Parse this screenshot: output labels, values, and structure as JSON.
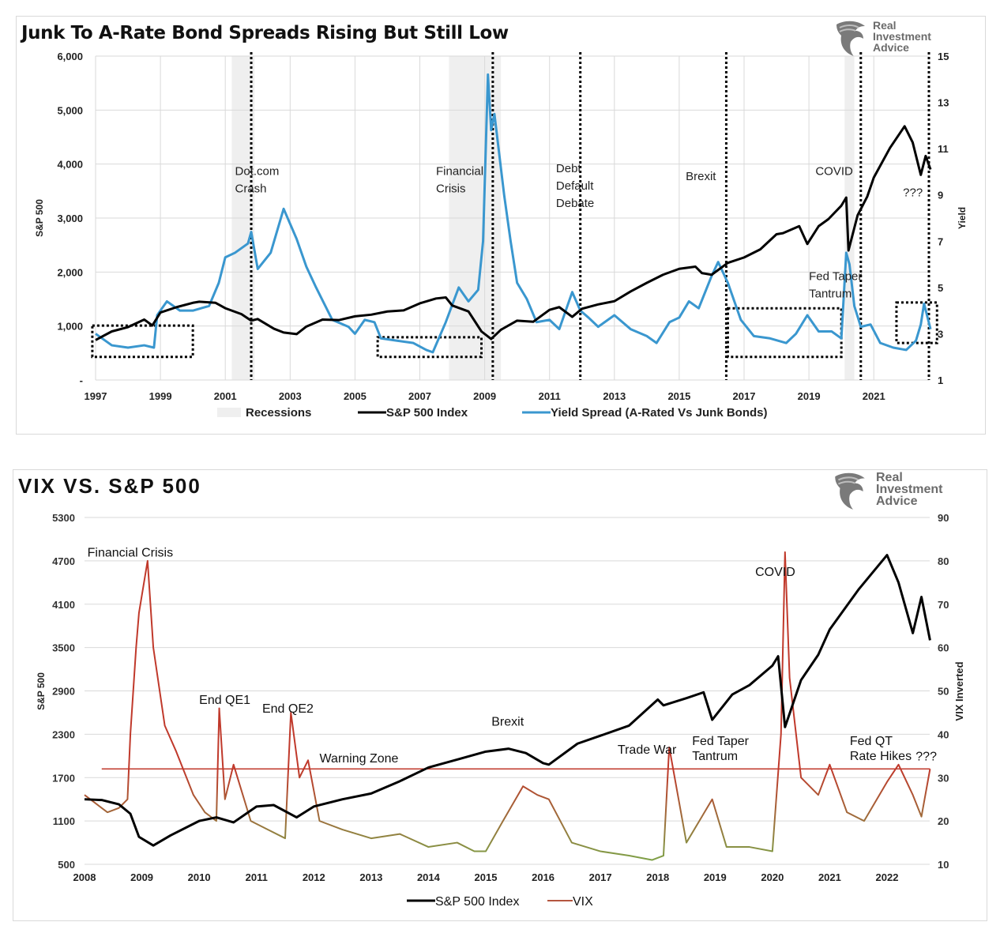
{
  "chart_data": [
    {
      "type": "line",
      "title": "Junk To A-Rate Bond Spreads Rising But Still Low",
      "xlabel": "",
      "ylabel": "S&P 500",
      "y2label": "Yield",
      "xlim": [
        1997,
        2022.75
      ],
      "ylim": [
        0,
        6000
      ],
      "y2lim": [
        1,
        15
      ],
      "x_ticks": [
        "1997",
        "1999",
        "2001",
        "2003",
        "2005",
        "2007",
        "2009",
        "2011",
        "2013",
        "2015",
        "2017",
        "2019",
        "2021"
      ],
      "y_ticks": [
        "-",
        "1,000",
        "2,000",
        "3,000",
        "4,000",
        "5,000",
        "6,000"
      ],
      "y2_ticks": [
        "1",
        "3",
        "5",
        "7",
        "9",
        "11",
        "13",
        "15"
      ],
      "grid": true,
      "legend": {
        "placement": "bottom",
        "entries": [
          "Recessions",
          "S&P 500 Index",
          "Yield Spread (A-Rated Vs Junk Bonds)"
        ]
      },
      "recessions": [
        [
          2001.2,
          2001.9
        ],
        [
          2007.9,
          2009.5
        ],
        [
          2020.1,
          2020.4
        ]
      ],
      "event_lines": [
        2001.8,
        2009.25,
        2011.95,
        2016.45,
        2020.6,
        2022.7
      ],
      "annotations": [
        {
          "text": "Dot.com\nCrash",
          "x": 2001.3,
          "y": 3800
        },
        {
          "text": "Financial\nCrisis",
          "x": 2007.5,
          "y": 3800
        },
        {
          "text": "Debt\nDefault\nDebate",
          "x": 2011.2,
          "y": 3850
        },
        {
          "text": "Brexit",
          "x": 2015.2,
          "y": 3700
        },
        {
          "text": "COVID",
          "x": 2019.2,
          "y": 3800
        },
        {
          "text": "???",
          "x": 2021.9,
          "y": 3400
        },
        {
          "text": "Fed Taper\nTantrum",
          "x": 2019.0,
          "y": 1850
        }
      ],
      "low_spread_boxes": [
        {
          "x": [
            1996.9,
            2000.0
          ],
          "y2": [
            2.0,
            3.35
          ]
        },
        {
          "x": [
            2005.7,
            2008.9
          ],
          "y2": [
            2.0,
            2.85
          ]
        },
        {
          "x": [
            2016.5,
            2020.0
          ],
          "y2": [
            2.0,
            4.1
          ]
        },
        {
          "x": [
            2021.7,
            2022.95
          ],
          "y2": [
            2.6,
            4.35
          ]
        }
      ],
      "series": [
        {
          "name": "S&P 500 Index",
          "axis": "left",
          "color": "#000000",
          "x": [
            1997.0,
            1997.5,
            1998.0,
            1998.5,
            1998.75,
            1999.0,
            1999.5,
            2000.0,
            2000.2,
            2000.7,
            2001.0,
            2001.5,
            2001.8,
            2002.0,
            2002.5,
            2002.8,
            2003.2,
            2003.5,
            2004.0,
            2004.5,
            2005.0,
            2005.5,
            2006.0,
            2006.5,
            2007.0,
            2007.5,
            2007.8,
            2008.0,
            2008.5,
            2008.9,
            2009.2,
            2009.5,
            2010.0,
            2010.5,
            2011.0,
            2011.3,
            2011.7,
            2012.0,
            2012.5,
            2013.0,
            2013.5,
            2014.0,
            2014.5,
            2015.0,
            2015.5,
            2015.7,
            2016.0,
            2016.5,
            2017.0,
            2017.5,
            2018.0,
            2018.2,
            2018.7,
            2018.95,
            2019.3,
            2019.6,
            2020.0,
            2020.15,
            2020.22,
            2020.5,
            2020.8,
            2021.0,
            2021.5,
            2021.95,
            2022.2,
            2022.45,
            2022.6,
            2022.75
          ],
          "values": [
            740,
            900,
            980,
            1120,
            1010,
            1250,
            1350,
            1430,
            1450,
            1430,
            1330,
            1220,
            1100,
            1130,
            950,
            880,
            850,
            990,
            1120,
            1110,
            1180,
            1210,
            1270,
            1290,
            1420,
            1510,
            1530,
            1380,
            1270,
            900,
            760,
            930,
            1100,
            1080,
            1300,
            1350,
            1170,
            1320,
            1400,
            1460,
            1640,
            1800,
            1950,
            2060,
            2100,
            1980,
            1950,
            2170,
            2270,
            2420,
            2700,
            2720,
            2850,
            2520,
            2850,
            2980,
            3230,
            3380,
            2400,
            3050,
            3400,
            3750,
            4300,
            4700,
            4400,
            3800,
            4150,
            3900
          ]
        },
        {
          "name": "Yield Spread (A-Rated Vs Junk Bonds)",
          "axis": "right",
          "color": "#3a97cf",
          "x": [
            1997.0,
            1997.5,
            1998.0,
            1998.5,
            1998.8,
            1998.9,
            1999.2,
            1999.6,
            2000.0,
            2000.5,
            2000.8,
            2001.0,
            2001.3,
            2001.7,
            2001.8,
            2002.0,
            2002.4,
            2002.8,
            2003.2,
            2003.5,
            2003.8,
            2004.3,
            2004.8,
            2005.0,
            2005.3,
            2005.6,
            2005.8,
            2006.3,
            2006.8,
            2007.2,
            2007.4,
            2007.8,
            2008.2,
            2008.5,
            2008.8,
            2008.95,
            2009.1,
            2009.2,
            2009.3,
            2009.6,
            2009.8,
            2010.0,
            2010.3,
            2010.6,
            2011.0,
            2011.3,
            2011.7,
            2011.95,
            2012.2,
            2012.5,
            2013.0,
            2013.5,
            2014.0,
            2014.3,
            2014.7,
            2015.0,
            2015.3,
            2015.6,
            2016.0,
            2016.2,
            2016.5,
            2016.9,
            2017.3,
            2017.8,
            2018.3,
            2018.6,
            2018.95,
            2019.3,
            2019.7,
            2020.0,
            2020.15,
            2020.25,
            2020.4,
            2020.6,
            2020.9,
            2021.2,
            2021.6,
            2022.0,
            2022.3,
            2022.45,
            2022.55,
            2022.75
          ],
          "values": [
            3.0,
            2.5,
            2.4,
            2.5,
            2.4,
            3.8,
            4.4,
            4.0,
            4.0,
            4.2,
            5.2,
            6.3,
            6.5,
            6.9,
            7.4,
            5.8,
            6.5,
            8.4,
            7.1,
            5.9,
            5.0,
            3.6,
            3.3,
            3.0,
            3.6,
            3.5,
            2.8,
            2.7,
            2.6,
            2.3,
            2.2,
            3.5,
            5.0,
            4.4,
            4.9,
            7.0,
            14.2,
            11.8,
            12.5,
            9.0,
            7.0,
            5.2,
            4.5,
            3.5,
            3.6,
            3.2,
            4.8,
            4.0,
            3.7,
            3.3,
            3.8,
            3.2,
            2.9,
            2.6,
            3.5,
            3.7,
            4.4,
            4.1,
            5.5,
            6.1,
            5.2,
            3.6,
            2.9,
            2.8,
            2.6,
            3.0,
            3.8,
            3.1,
            3.1,
            2.8,
            6.5,
            6.0,
            4.2,
            3.3,
            3.4,
            2.6,
            2.4,
            2.3,
            2.7,
            3.4,
            4.3,
            3.2
          ]
        }
      ]
    },
    {
      "type": "line",
      "title": "VIX VS. S&P 500",
      "xlabel": "",
      "ylabel": "S&P 500",
      "y2label": "VIX Inverted",
      "xlim": [
        2008,
        2022.75
      ],
      "ylim": [
        500,
        5300
      ],
      "y2lim": [
        10,
        90
      ],
      "x_ticks": [
        "2008",
        "2009",
        "2010",
        "2011",
        "2012",
        "2013",
        "2014",
        "2015",
        "2016",
        "2017",
        "2018",
        "2019",
        "2020",
        "2021",
        "2022"
      ],
      "y_ticks": [
        "500",
        "1100",
        "1700",
        "2300",
        "2900",
        "3500",
        "4100",
        "4700",
        "5300"
      ],
      "y2_ticks": [
        "10",
        "20",
        "30",
        "40",
        "50",
        "60",
        "70",
        "80",
        "90"
      ],
      "grid": true,
      "legend": {
        "placement": "bottom",
        "entries": [
          "S&P 500 Index",
          "VIX"
        ]
      },
      "warning_zone_level": 32,
      "annotations": [
        {
          "text": "Financial Crisis",
          "x": 2008.05,
          "y2": 81
        },
        {
          "text": "End QE1",
          "x": 2010.0,
          "y2": 47
        },
        {
          "text": "End QE2",
          "x": 2011.1,
          "y2": 45
        },
        {
          "text": "Warning Zone",
          "x": 2012.1,
          "y2": 33.5
        },
        {
          "text": "Brexit",
          "x": 2015.1,
          "y2": 42
        },
        {
          "text": "Trade War",
          "x": 2017.3,
          "y2": 35.5
        },
        {
          "text": "Fed Taper\nTantrum",
          "x": 2018.6,
          "y2": 37.5
        },
        {
          "text": "COVID",
          "x": 2019.7,
          "y2": 76.5
        },
        {
          "text": "Fed QT\nRate Hikes",
          "x": 2021.35,
          "y2": 37.5
        },
        {
          "text": "???",
          "x": 2022.5,
          "y2": 34
        }
      ],
      "series": [
        {
          "name": "S&P 500 Index",
          "axis": "left",
          "color": "#000000",
          "x": [
            2008.0,
            2008.3,
            2008.6,
            2008.8,
            2008.95,
            2009.2,
            2009.5,
            2010.0,
            2010.3,
            2010.6,
            2011.0,
            2011.3,
            2011.7,
            2012.0,
            2012.5,
            2013.0,
            2013.5,
            2014.0,
            2014.5,
            2015.0,
            2015.4,
            2015.7,
            2016.0,
            2016.1,
            2016.6,
            2017.0,
            2017.5,
            2018.0,
            2018.1,
            2018.5,
            2018.8,
            2018.95,
            2019.3,
            2019.6,
            2020.0,
            2020.1,
            2020.22,
            2020.5,
            2020.8,
            2021.0,
            2021.5,
            2022.0,
            2022.2,
            2022.45,
            2022.6,
            2022.75
          ],
          "values": [
            1400,
            1390,
            1330,
            1200,
            880,
            760,
            900,
            1100,
            1150,
            1080,
            1300,
            1320,
            1150,
            1300,
            1400,
            1480,
            1650,
            1840,
            1950,
            2060,
            2100,
            2040,
            1900,
            1880,
            2170,
            2280,
            2420,
            2780,
            2700,
            2800,
            2880,
            2500,
            2850,
            2980,
            3250,
            3380,
            2400,
            3050,
            3400,
            3750,
            4300,
            4780,
            4400,
            3700,
            4200,
            3600
          ]
        },
        {
          "name": "VIX",
          "axis": "right",
          "color": "#c0392b",
          "color_low": "#7ca649",
          "x": [
            2008.0,
            2008.2,
            2008.4,
            2008.6,
            2008.75,
            2008.8,
            2008.9,
            2008.95,
            2009.1,
            2009.2,
            2009.4,
            2009.6,
            2009.9,
            2010.1,
            2010.3,
            2010.35,
            2010.45,
            2010.6,
            2010.9,
            2011.2,
            2011.5,
            2011.6,
            2011.75,
            2011.9,
            2012.1,
            2012.5,
            2013.0,
            2013.5,
            2014.0,
            2014.5,
            2014.8,
            2015.0,
            2015.3,
            2015.65,
            2015.9,
            2016.1,
            2016.5,
            2017.0,
            2017.5,
            2017.9,
            2018.1,
            2018.2,
            2018.5,
            2018.95,
            2019.2,
            2019.6,
            2020.0,
            2020.15,
            2020.22,
            2020.3,
            2020.5,
            2020.8,
            2021.0,
            2021.3,
            2021.6,
            2022.0,
            2022.2,
            2022.45,
            2022.6,
            2022.75
          ],
          "values": [
            26,
            24,
            22,
            23,
            25,
            40,
            60,
            68,
            80,
            60,
            42,
            36,
            26,
            22,
            20,
            46,
            25,
            33,
            20,
            18,
            16,
            45,
            30,
            34,
            20,
            18,
            16,
            17,
            14,
            15,
            13,
            13,
            20,
            28,
            26,
            25,
            15,
            13,
            12,
            11,
            12,
            37,
            15,
            25,
            14,
            14,
            13,
            40,
            82,
            53,
            30,
            26,
            33,
            22,
            20,
            29,
            33,
            26,
            21,
            32
          ]
        }
      ]
    }
  ],
  "logo": {
    "line1": "Real",
    "line2": "Investment",
    "line3": "Advice",
    "icon": "eagle-head-icon"
  }
}
